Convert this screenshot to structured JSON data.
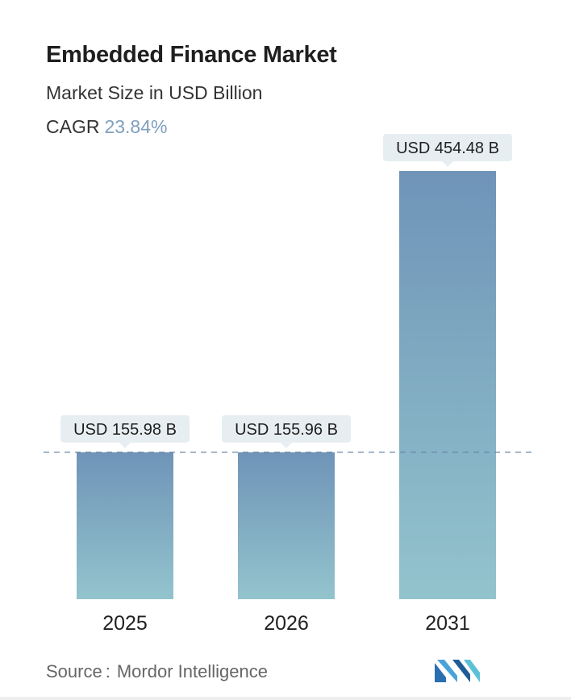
{
  "header": {
    "title": "Embedded Finance Market",
    "subtitle": "Market Size in USD Billion",
    "cagr_label": "CAGR",
    "cagr_value": "23.84%"
  },
  "chart_data": {
    "type": "bar",
    "categories": [
      "2025",
      "2026",
      "2031"
    ],
    "values": [
      155.98,
      155.96,
      454.48
    ],
    "data_labels": [
      "USD 155.98 B",
      "USD 155.96 B",
      "USD 454.48 B"
    ],
    "title": "Embedded Finance Market",
    "subtitle": "Market Size in USD Billion",
    "xlabel": "",
    "ylabel": "",
    "ylim": [
      0,
      454.48
    ],
    "grid": false,
    "reference_line": "dashed line at 2025 value",
    "colors": {
      "bar_top": "#6f94b8",
      "bar_bottom": "#93c4cd",
      "label_bg": "#e7eef1",
      "dash": "#6a88a4"
    }
  },
  "footer": {
    "source_label": "Source",
    "source_sep": ":",
    "source_name": "Mordor Intelligence",
    "logo_icon": "mordor-intelligence-logo-icon"
  }
}
